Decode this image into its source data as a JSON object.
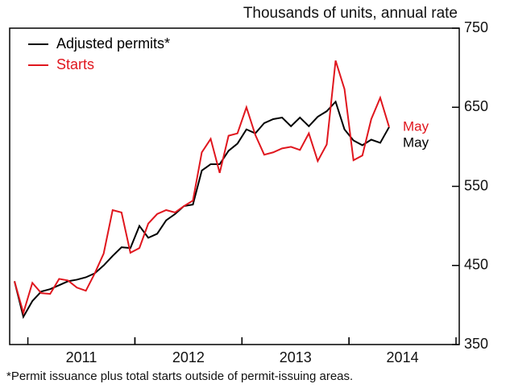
{
  "chart_data": {
    "type": "line",
    "title": "Thousands of units, annual rate",
    "footnote": "*Permit issuance plus total starts outside of permit-issuing areas.",
    "x": [
      2010.875,
      2010.958,
      2011.042,
      2011.125,
      2011.208,
      2011.292,
      2011.375,
      2011.458,
      2011.542,
      2011.625,
      2011.708,
      2011.792,
      2011.875,
      2011.958,
      2012.042,
      2012.125,
      2012.208,
      2012.292,
      2012.375,
      2012.458,
      2012.542,
      2012.625,
      2012.708,
      2012.792,
      2012.875,
      2012.958,
      2013.042,
      2013.125,
      2013.208,
      2013.292,
      2013.375,
      2013.458,
      2013.542,
      2013.625,
      2013.708,
      2013.792,
      2013.875,
      2013.958,
      2014.042,
      2014.125,
      2014.208,
      2014.292,
      2014.375
    ],
    "series": [
      {
        "name": "Adjusted permits*",
        "color": "#000000",
        "end_label": "May",
        "values": [
          430,
          385,
          405,
          417,
          420,
          425,
          430,
          432,
          435,
          440,
          450,
          462,
          473,
          472,
          500,
          485,
          490,
          507,
          515,
          525,
          527,
          570,
          578,
          578,
          595,
          604,
          622,
          617,
          630,
          635,
          637,
          626,
          637,
          626,
          638,
          645,
          657,
          622,
          608,
          602,
          609,
          605,
          625
        ]
      },
      {
        "name": "Starts",
        "color": "#e0161e",
        "end_label": "May",
        "values": [
          430,
          390,
          428,
          415,
          414,
          433,
          431,
          422,
          418,
          440,
          465,
          520,
          517,
          466,
          472,
          503,
          515,
          520,
          517,
          525,
          532,
          593,
          610,
          567,
          614,
          617,
          650,
          615,
          590,
          593,
          598,
          600,
          596,
          617,
          582,
          603,
          709,
          673,
          583,
          589,
          635,
          662,
          625
        ]
      }
    ],
    "xlim": [
      2010.83,
      2015.03
    ],
    "xticks": [
      {
        "value": 2011.5,
        "label": "2011"
      },
      {
        "value": 2012.5,
        "label": "2012"
      },
      {
        "value": 2013.5,
        "label": "2013"
      },
      {
        "value": 2014.5,
        "label": "2014"
      }
    ],
    "ylim": [
      350,
      750
    ],
    "yticks": [
      350,
      450,
      550,
      650,
      750
    ],
    "legend": "upper left"
  }
}
